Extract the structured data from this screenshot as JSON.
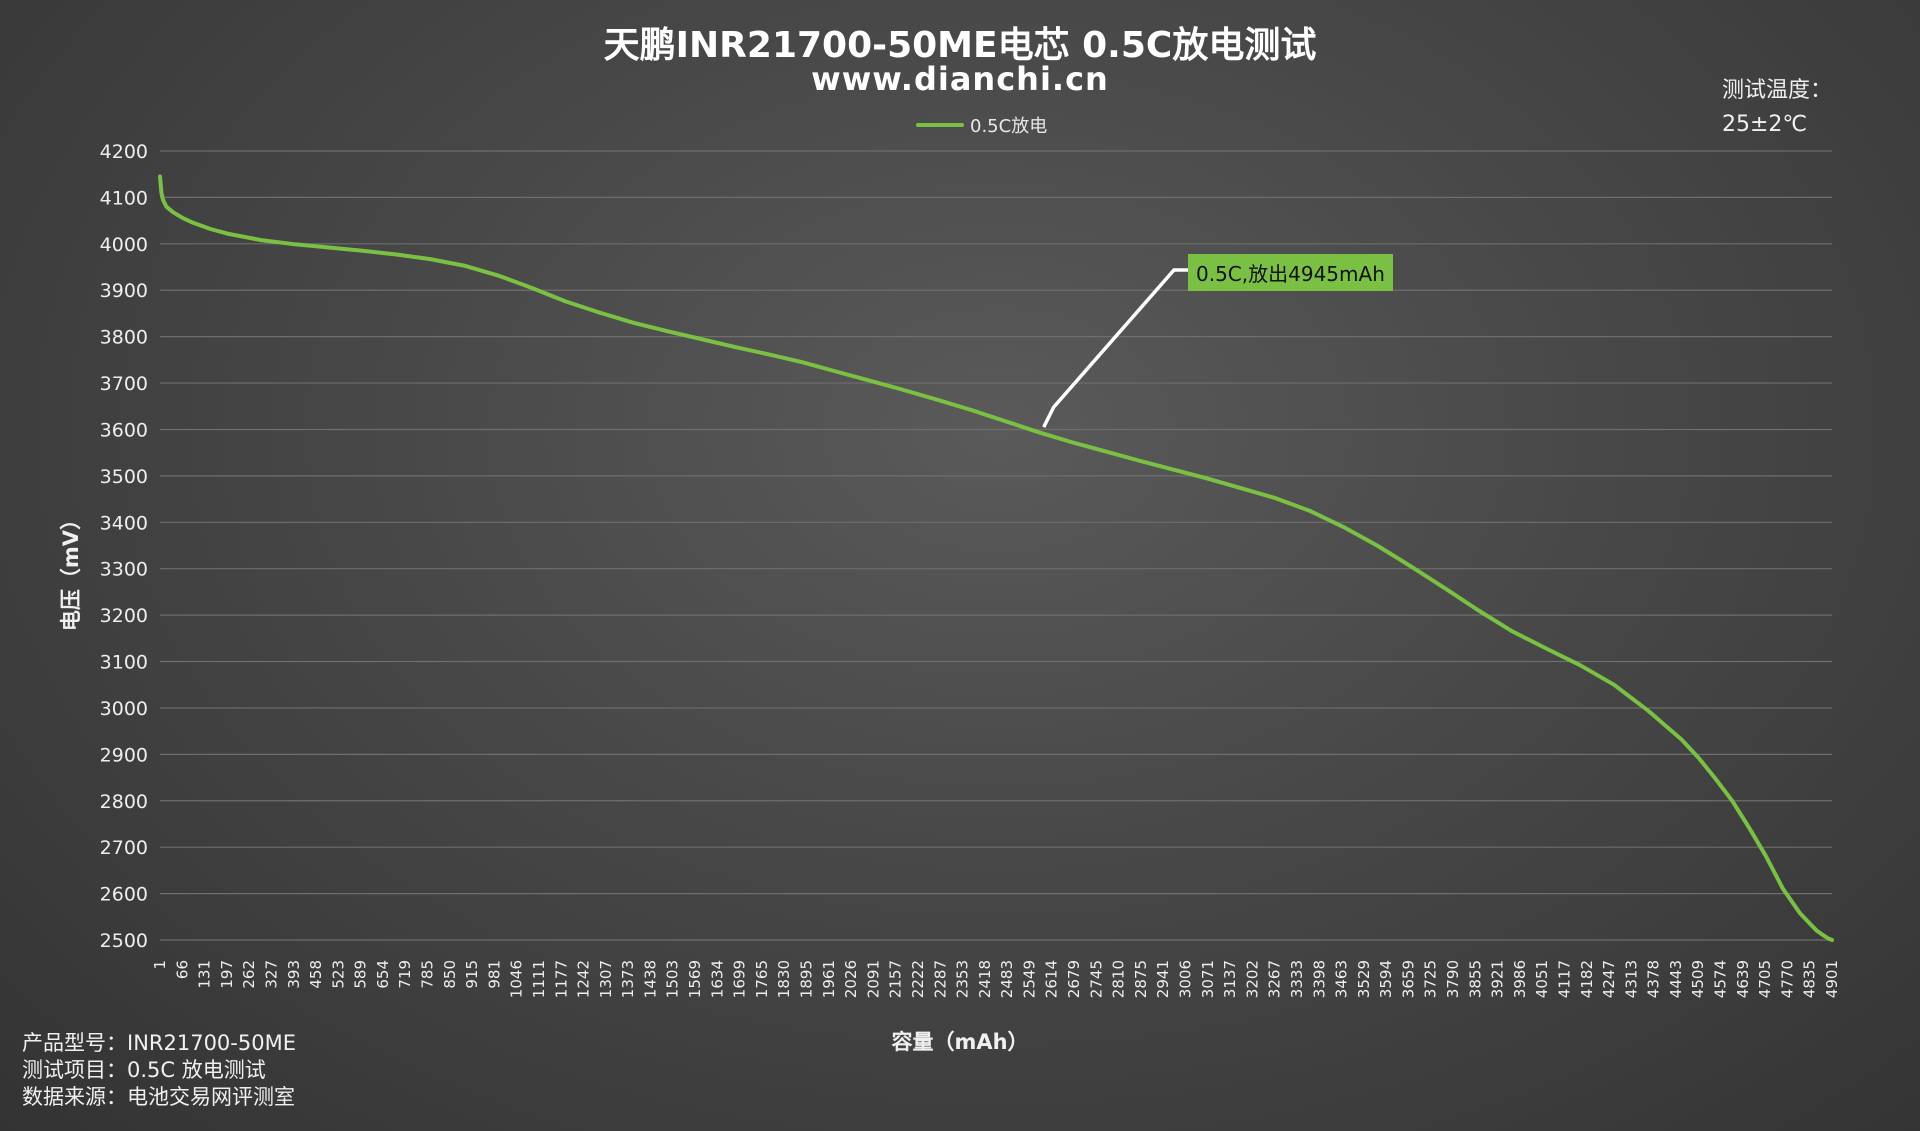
{
  "title": "天鹏INR21700-50ME电芯 0.5C放电测试",
  "subtitle": "www.dianchi.cn",
  "temperature": {
    "label": "测试温度：",
    "value": "25±2℃"
  },
  "info": {
    "model": "产品型号：INR21700-50ME",
    "item": "测试项目：0.5C 放电测试",
    "source": "数据来源：电池交易网评测室"
  },
  "annotation": "0.5C,放出4945mAh",
  "colors": {
    "series": "#7ac143",
    "grid": "#6e6e6e",
    "axis_text": "#eeeeee"
  },
  "chart_data": {
    "type": "line",
    "title": "天鹏INR21700-50ME电芯 0.5C放电测试",
    "xlabel": "容量（mAh）",
    "ylabel": "电压（mV）",
    "ylim": [
      2500,
      4200
    ],
    "yticks": [
      2500,
      2600,
      2700,
      2800,
      2900,
      3000,
      3100,
      3200,
      3300,
      3400,
      3500,
      3600,
      3700,
      3800,
      3900,
      4000,
      4100,
      4200
    ],
    "xlim": [
      1,
      4945
    ],
    "xticks": [
      1,
      66,
      131,
      197,
      262,
      327,
      393,
      458,
      523,
      589,
      654,
      719,
      785,
      850,
      915,
      981,
      1046,
      1111,
      1177,
      1242,
      1307,
      1373,
      1438,
      1503,
      1569,
      1634,
      1699,
      1765,
      1830,
      1895,
      1961,
      2026,
      2091,
      2157,
      2222,
      2287,
      2353,
      2418,
      2483,
      2549,
      2614,
      2679,
      2745,
      2810,
      2875,
      2941,
      3006,
      3071,
      3137,
      3202,
      3267,
      3333,
      3398,
      3463,
      3529,
      3594,
      3659,
      3725,
      3790,
      3855,
      3921,
      3986,
      4051,
      4117,
      4182,
      4247,
      4313,
      4378,
      4443,
      4509,
      4574,
      4639,
      4705,
      4770,
      4835,
      4901
    ],
    "grid": true,
    "legend_position": "top-center",
    "series": [
      {
        "name": "0.5C放电",
        "x": [
          1,
          5,
          10,
          20,
          40,
          70,
          100,
          150,
          200,
          300,
          400,
          500,
          600,
          700,
          800,
          900,
          1000,
          1100,
          1200,
          1300,
          1400,
          1500,
          1600,
          1700,
          1800,
          1900,
          2000,
          2100,
          2200,
          2300,
          2400,
          2500,
          2600,
          2700,
          2800,
          2900,
          3000,
          3100,
          3200,
          3300,
          3400,
          3500,
          3600,
          3700,
          3800,
          3900,
          4000,
          4100,
          4200,
          4300,
          4400,
          4500,
          4550,
          4600,
          4650,
          4700,
          4750,
          4800,
          4850,
          4880,
          4900,
          4920,
          4935,
          4945
        ],
        "y": [
          4145,
          4110,
          4095,
          4080,
          4068,
          4055,
          4045,
          4032,
          4022,
          4008,
          3999,
          3992,
          3985,
          3977,
          3967,
          3953,
          3932,
          3905,
          3876,
          3852,
          3830,
          3812,
          3795,
          3778,
          3762,
          3745,
          3725,
          3705,
          3685,
          3664,
          3642,
          3618,
          3594,
          3572,
          3552,
          3532,
          3513,
          3494,
          3473,
          3452,
          3425,
          3390,
          3350,
          3305,
          3258,
          3210,
          3165,
          3128,
          3092,
          3050,
          2995,
          2932,
          2893,
          2848,
          2800,
          2742,
          2680,
          2610,
          2558,
          2535,
          2520,
          2510,
          2503,
          2500
        ]
      }
    ]
  }
}
